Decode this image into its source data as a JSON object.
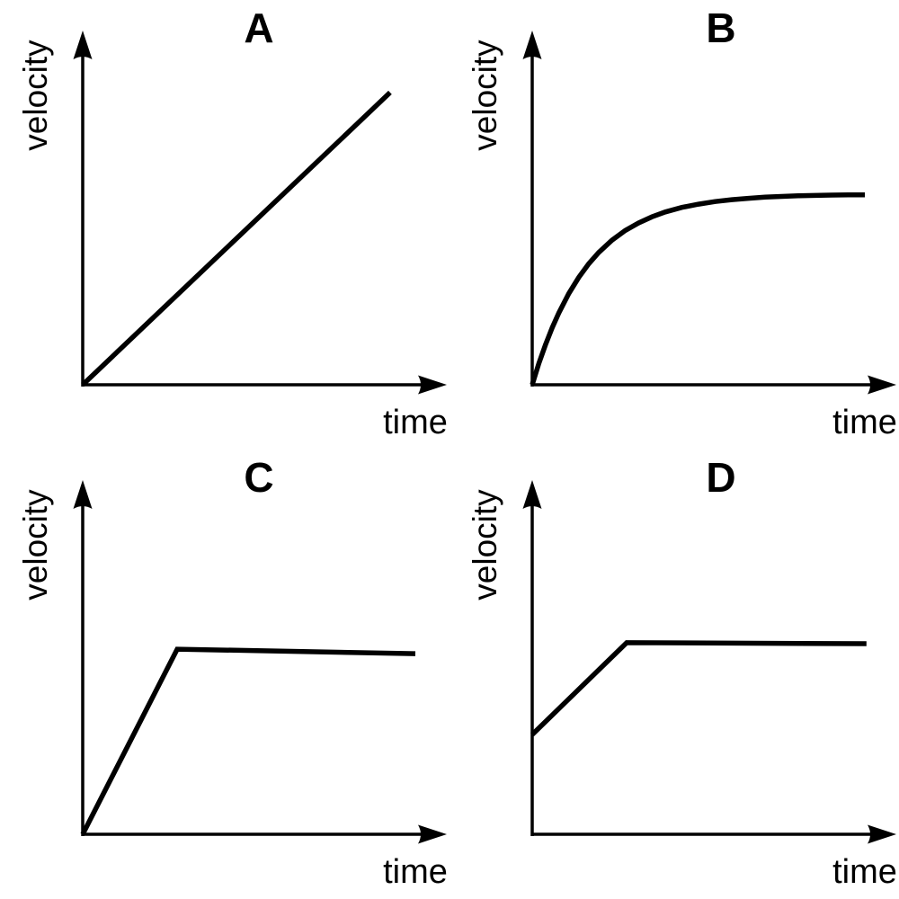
{
  "figure": {
    "description": "Four qualitative velocity versus time graphs labelled A, B, C and D",
    "line_color": "#000000",
    "background_color": "#ffffff"
  },
  "chart_data": [
    {
      "id": "A",
      "type": "line",
      "title": "A",
      "xlabel": "time",
      "ylabel": "velocity",
      "grid": false,
      "axis_ticks": "none",
      "shape": "straight line rising from the origin (constant acceleration)",
      "points": [
        [
          0,
          0
        ],
        [
          0.924,
          0.903
        ]
      ]
    },
    {
      "id": "B",
      "type": "line",
      "title": "B",
      "xlabel": "time",
      "ylabel": "velocity",
      "grid": false,
      "axis_ticks": "none",
      "shape": "curve rising from the origin, levelling off to a constant terminal velocity",
      "points": [
        [
          0,
          0
        ],
        [
          0.02,
          0.066
        ],
        [
          0.04,
          0.124
        ],
        [
          0.06,
          0.176
        ],
        [
          0.08,
          0.222
        ],
        [
          0.11,
          0.282
        ],
        [
          0.14,
          0.332
        ],
        [
          0.17,
          0.374
        ],
        [
          0.2,
          0.409
        ],
        [
          0.24,
          0.447
        ],
        [
          0.28,
          0.477
        ],
        [
          0.32,
          0.5
        ],
        [
          0.36,
          0.519
        ],
        [
          0.4,
          0.534
        ],
        [
          0.45,
          0.548
        ],
        [
          0.5,
          0.558
        ],
        [
          0.55,
          0.566
        ],
        [
          0.6,
          0.572
        ],
        [
          0.65,
          0.576
        ],
        [
          0.7,
          0.58
        ],
        [
          0.75,
          0.582
        ],
        [
          0.8,
          0.584
        ],
        [
          0.85,
          0.585
        ],
        [
          0.9,
          0.586
        ],
        [
          0.95,
          0.587
        ],
        [
          1.0,
          0.587
        ]
      ]
    },
    {
      "id": "C",
      "type": "line",
      "title": "C",
      "xlabel": "time",
      "ylabel": "velocity",
      "grid": false,
      "axis_ticks": "none",
      "shape": "straight line rising from the origin, then abruptly constant velocity",
      "points": [
        [
          0,
          0
        ],
        [
          0.284,
          0.572
        ],
        [
          1.0,
          0.558
        ]
      ]
    },
    {
      "id": "D",
      "type": "line",
      "title": "D",
      "xlabel": "time",
      "ylabel": "velocity",
      "grid": false,
      "axis_ticks": "none",
      "shape": "starts at a non-zero velocity, rises linearly, then abruptly constant velocity",
      "points": [
        [
          0,
          0.308
        ],
        [
          0.284,
          0.592
        ],
        [
          1.005,
          0.589
        ]
      ]
    }
  ]
}
